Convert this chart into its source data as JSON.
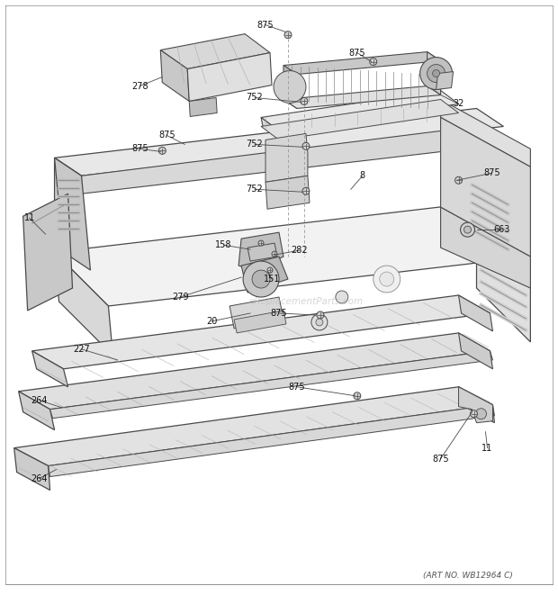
{
  "art_no": "(ART NO. WB12964 C)",
  "watermark": "eReplacementParts.com",
  "bg_color": "#ffffff",
  "lc": "#4a4a4a",
  "fig_width": 6.2,
  "fig_height": 6.61,
  "dpi": 100
}
